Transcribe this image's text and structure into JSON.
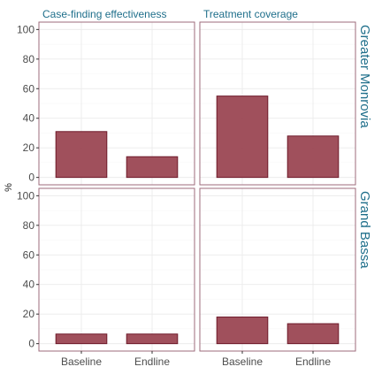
{
  "chart_data": {
    "type": "bar",
    "categories": [
      "Baseline",
      "Endline"
    ],
    "ylabel": "%",
    "ylim": [
      0,
      100
    ],
    "yticks": [
      0,
      20,
      40,
      60,
      80,
      100
    ],
    "columns": [
      "Case-finding effectiveness",
      "Treatment coverage"
    ],
    "rows": [
      "Greater Monrovia",
      "Grand Bassa"
    ],
    "bar_color": "#9b4753",
    "panels": [
      {
        "row": "Greater Monrovia",
        "column": "Case-finding effectiveness",
        "values": [
          31,
          14
        ]
      },
      {
        "row": "Greater Monrovia",
        "column": "Treatment coverage",
        "values": [
          55,
          28
        ]
      },
      {
        "row": "Grand Bassa",
        "column": "Case-finding effectiveness",
        "values": [
          6.5,
          6.5
        ]
      },
      {
        "row": "Grand Bassa",
        "column": "Treatment coverage",
        "values": [
          18,
          13.5
        ]
      }
    ]
  }
}
